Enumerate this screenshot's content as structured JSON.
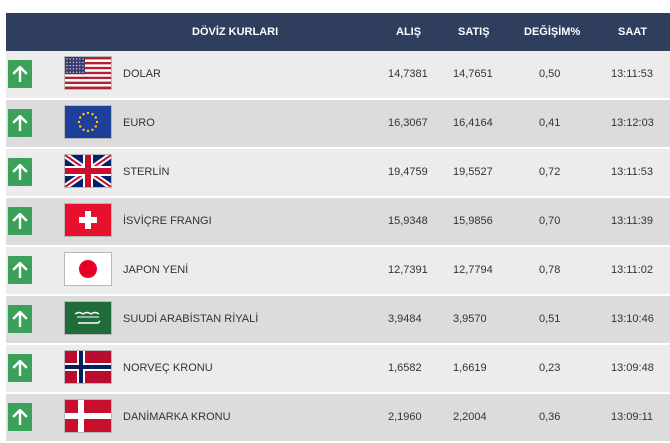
{
  "header": {
    "title": "DÖVİZ KURLARI",
    "buy": "ALIŞ",
    "sell": "SATIŞ",
    "change": "DEĞİŞİM%",
    "time": "SAAT"
  },
  "rows": [
    {
      "flag": "flag-usa",
      "trend": "up-arrow-icon",
      "name": "DOLAR",
      "buy": "14,7381",
      "sell": "14,7651",
      "change": "0,50",
      "time": "13:11:53"
    },
    {
      "flag": "flag-eu",
      "trend": "up-arrow-icon",
      "name": "EURO",
      "buy": "16,3067",
      "sell": "16,4164",
      "change": "0,41",
      "time": "13:12:03"
    },
    {
      "flag": "flag-uk",
      "trend": "up-arrow-icon",
      "name": "STERLİN",
      "buy": "19,4759",
      "sell": "19,5527",
      "change": "0,72",
      "time": "13:11:53"
    },
    {
      "flag": "flag-switzerland",
      "trend": "up-arrow-icon",
      "name": "İSVİÇRE FRANGI",
      "buy": "15,9348",
      "sell": "15,9856",
      "change": "0,70",
      "time": "13:11:39"
    },
    {
      "flag": "flag-japan",
      "trend": "up-arrow-icon",
      "name": "JAPON YENİ",
      "buy": "12,7391",
      "sell": "12,7794",
      "change": "0,78",
      "time": "13:11:02"
    },
    {
      "flag": "flag-saudi-arabia",
      "trend": "up-arrow-icon",
      "name": "SUUDİ ARABİSTAN RİYALİ",
      "buy": "3,9484",
      "sell": "3,9570",
      "change": "0,51",
      "time": "13:10:46"
    },
    {
      "flag": "flag-norway",
      "trend": "up-arrow-icon",
      "name": "NORVEÇ KRONU",
      "buy": "1,6582",
      "sell": "1,6619",
      "change": "0,23",
      "time": "13:09:48"
    },
    {
      "flag": "flag-denmark",
      "trend": "up-arrow-icon",
      "name": "DANİMARKA KRONU",
      "buy": "2,1960",
      "sell": "2,2004",
      "change": "0,36",
      "time": "13:09:11"
    }
  ],
  "colors": {
    "header_bg": "#2f3e5c",
    "up_arrow": "#3aa05a",
    "row_odd": "#ececec",
    "row_even": "#dcdcdc"
  }
}
